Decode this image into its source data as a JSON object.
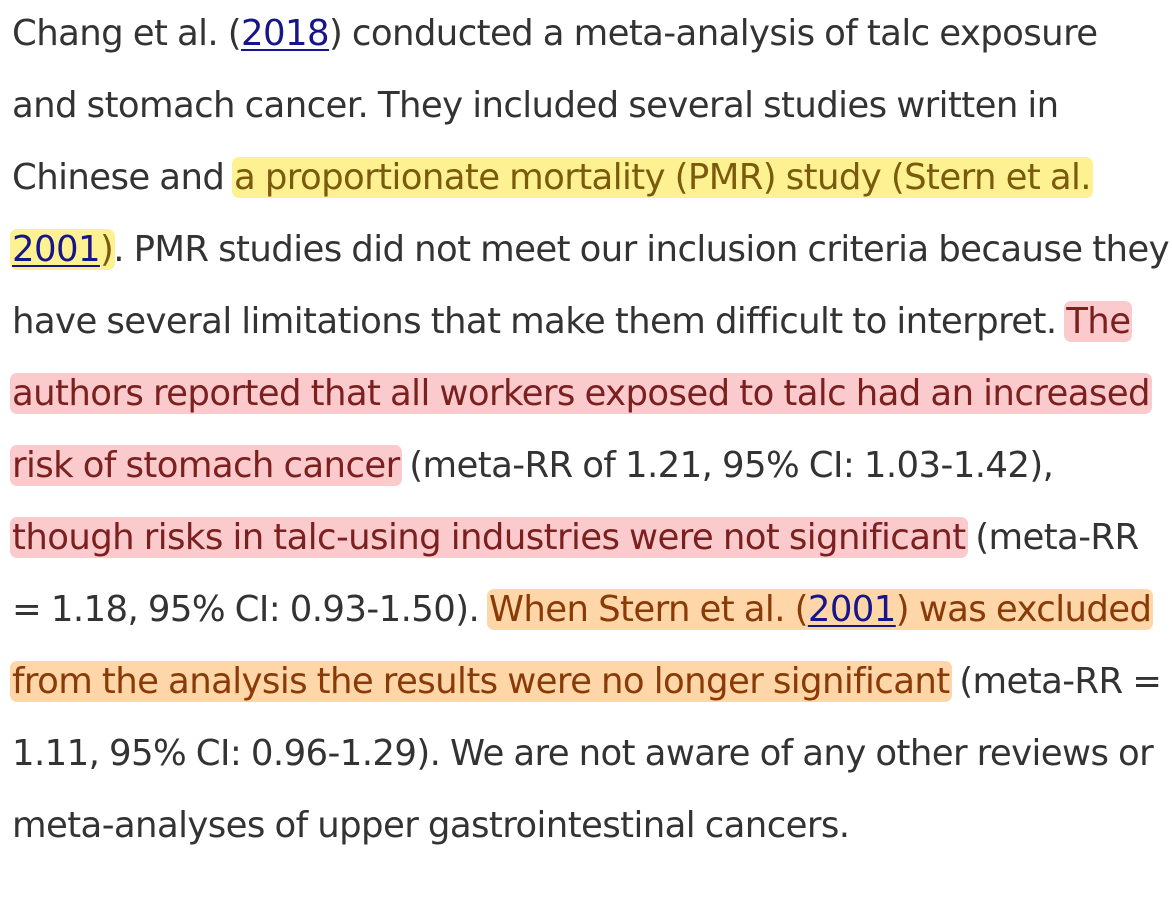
{
  "paragraph": {
    "s1_prefix": "Chang et al. (",
    "s1_cite": "2018",
    "s1_mid": ") conducted a meta-analysis of talc exposure and stomach cancer. They included several studies written in Chinese and ",
    "hl1_a": "a proportionate mortality (PMR) study (Stern et al. ",
    "hl1_cite": "2001",
    "hl1_b": ")",
    "s2": ". PMR studies did not meet our inclusion criteria because they have several limitations that make them difficult to interpret. ",
    "hl2": "The authors reported that all workers exposed to talc had an increased risk of stomach cancer",
    "s3": " (meta-RR of 1.21, 95% CI: 1.03-1.42), ",
    "hl3": "though risks in talc-using industries were not significant",
    "s4": " (meta-RR = 1.18, 95% CI: 0.93-1.50). ",
    "hl4_a": "When Stern et al. (",
    "hl4_cite": "2001",
    "hl4_b": ") was excluded from the analysis the results were no longer significant",
    "s5": " (meta-RR = 1.11, 95% CI: 0.96-1.29). We are not aware of any other reviews or meta-analyses of upper gastrointestinal cancers."
  },
  "colors": {
    "text": "#333333",
    "link": "#16168a",
    "highlight_yellow": "#fdf192",
    "highlight_red": "#fbcacc",
    "highlight_orange": "#fed6a8"
  }
}
